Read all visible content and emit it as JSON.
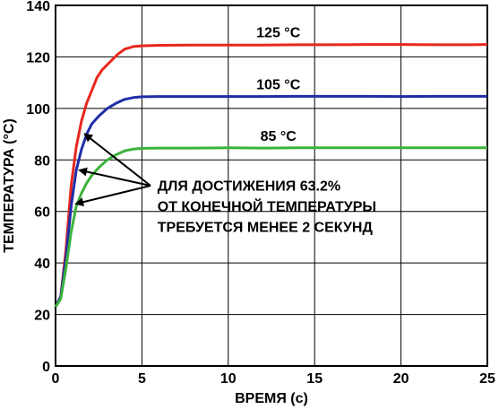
{
  "chart_data": {
    "type": "line",
    "title": "",
    "xlabel": "ВРЕМЯ (с)",
    "ylabel": "ТЕМПЕРАТУРА (°C)",
    "xlim": [
      0,
      25
    ],
    "ylim": [
      0,
      140
    ],
    "xticks": [
      0,
      5,
      10,
      15,
      20,
      25
    ],
    "yticks": [
      0,
      20,
      40,
      60,
      80,
      100,
      120,
      140
    ],
    "grid": true,
    "legend": "none",
    "series": [
      {
        "name": "125 °C",
        "color": "#e8281e",
        "x": [
          0,
          0.3,
          0.6,
          0.9,
          1.2,
          1.5,
          1.8,
          2.1,
          2.4,
          2.7,
          3.0,
          3.3,
          3.6,
          4.0,
          4.5,
          5.0,
          6,
          8,
          10,
          12,
          14,
          16,
          18,
          20,
          22,
          24,
          25
        ],
        "y": [
          23,
          27,
          45,
          70,
          85,
          95,
          102,
          107,
          112,
          115,
          117,
          119,
          121,
          123,
          124,
          124.3,
          124.5,
          124.6,
          124.6,
          124.6,
          124.7,
          124.7,
          124.8,
          124.8,
          124.7,
          124.7,
          124.8
        ]
      },
      {
        "name": "105 °C",
        "color": "#1f2da8",
        "x": [
          0,
          0.3,
          0.6,
          0.9,
          1.2,
          1.5,
          1.8,
          2.1,
          2.5,
          3.0,
          3.5,
          4.0,
          4.5,
          5.0,
          6,
          8,
          10,
          12,
          14,
          16,
          18,
          20,
          22,
          24,
          25
        ],
        "y": [
          23,
          27,
          42,
          62,
          76,
          84,
          90,
          94,
          97,
          100,
          102,
          103.5,
          104.2,
          104.5,
          104.6,
          104.6,
          104.6,
          104.6,
          104.7,
          104.7,
          104.7,
          104.6,
          104.7,
          104.7,
          104.7
        ]
      },
      {
        "name": "85 °C",
        "color": "#3cb33c",
        "x": [
          0,
          0.3,
          0.6,
          0.9,
          1.2,
          1.5,
          1.8,
          2.1,
          2.5,
          3.0,
          3.5,
          4.0,
          4.5,
          5.0,
          6,
          8,
          10,
          12,
          14,
          16,
          18,
          20,
          22,
          24,
          25
        ],
        "y": [
          23,
          26,
          38,
          52,
          62,
          67,
          71,
          74,
          77,
          80,
          82,
          83.5,
          84.2,
          84.5,
          84.6,
          84.6,
          84.7,
          84.6,
          84.7,
          84.7,
          84.7,
          84.7,
          84.7,
          84.7,
          84.7
        ]
      }
    ],
    "annotation": {
      "lines": [
        "ДЛЯ ДОСТИЖЕНИЯ 63.2%",
        "ОТ КОНЕЧНОЙ ТЕМПЕРАТУРЫ",
        "ТРЕБУЕТСЯ МЕНЕЕ 2 СЕКУНД"
      ],
      "targets": [
        {
          "x": 1.7,
          "y": 90
        },
        {
          "x": 1.4,
          "y": 76
        },
        {
          "x": 1.2,
          "y": 63
        }
      ]
    }
  }
}
